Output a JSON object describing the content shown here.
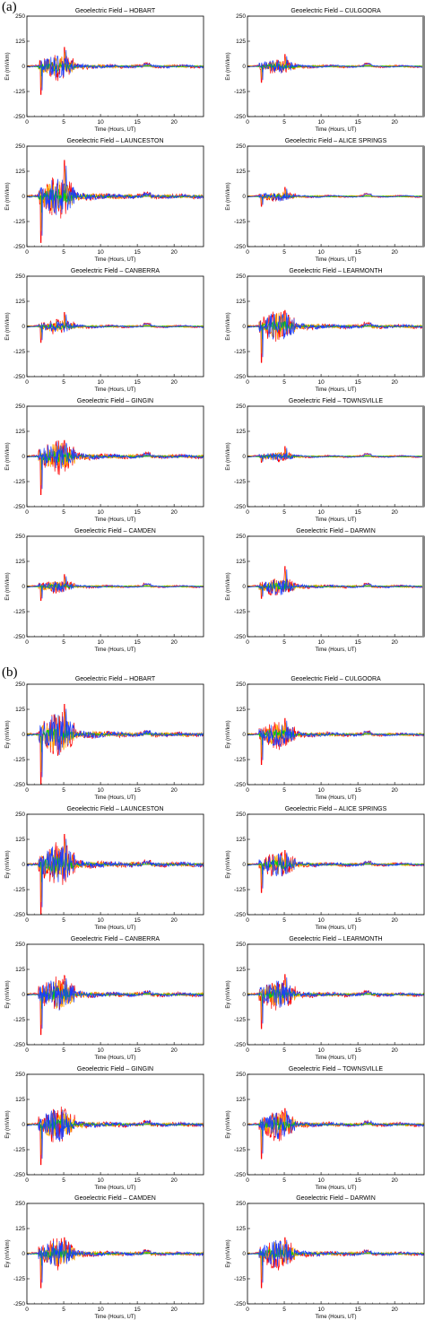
{
  "panel_labels": {
    "a": "(a)",
    "b": "(b)"
  },
  "colors": {
    "x_component": "#ff0000",
    "y_component": "#ffa500",
    "green": "#00cc00",
    "z_component": "#1a3cff",
    "edge_bar": "#888888"
  },
  "chart_data": [
    {
      "panel": "a",
      "type": "line",
      "title": "Geoelectric Field  –  HOBART",
      "xlabel": "Time (Hours, UT)",
      "ylabel": "Ex (mV/km)",
      "xlim": [
        0,
        24
      ],
      "ylim": [
        -250,
        250
      ],
      "xticks": [
        "0",
        "5",
        "10",
        "15",
        "20"
      ],
      "yticks": [
        "250",
        "125",
        "0",
        "-125",
        "-250"
      ],
      "peak_max": 95,
      "peak_min": -140,
      "series": [
        {
          "color": "#ff0000"
        },
        {
          "color": "#ffa500"
        },
        {
          "color": "#00cc00"
        },
        {
          "color": "#1a3cff"
        }
      ]
    },
    {
      "panel": "a",
      "type": "line",
      "title": "Geoelectric Field  –  CULGOORA",
      "xlabel": "Time (Hours, UT)",
      "ylabel": "Ex (mV/km)",
      "xlim": [
        0,
        24
      ],
      "ylim": [
        -250,
        250
      ],
      "xticks": [
        "0",
        "5",
        "10",
        "15",
        "20"
      ],
      "yticks": [
        "250",
        "125",
        "0",
        "-125",
        "-250"
      ],
      "peak_max": 60,
      "peak_min": -80,
      "series": [
        {
          "color": "#ff0000"
        },
        {
          "color": "#ffa500"
        },
        {
          "color": "#00cc00"
        },
        {
          "color": "#1a3cff"
        }
      ]
    },
    {
      "panel": "a",
      "type": "line",
      "title": "Geoelectric Field  –  LAUNCESTON",
      "xlabel": "Time (Hours, UT)",
      "ylabel": "Ex (mV/km)",
      "xlim": [
        0,
        24
      ],
      "ylim": [
        -250,
        250
      ],
      "xticks": [
        "0",
        "5",
        "10",
        "15",
        "20"
      ],
      "yticks": [
        "250",
        "125",
        "0",
        "-125",
        "-250"
      ],
      "peak_max": 180,
      "peak_min": -230,
      "series": [
        {
          "color": "#ff0000"
        },
        {
          "color": "#ffa500"
        },
        {
          "color": "#00cc00"
        },
        {
          "color": "#1a3cff"
        }
      ]
    },
    {
      "panel": "a",
      "type": "line",
      "title": "Geoelectric Field  –  ALICE SPRINGS",
      "xlabel": "Time (Hours, UT)",
      "ylabel": "Ex (mV/km)",
      "xlim": [
        0,
        24
      ],
      "ylim": [
        -250,
        250
      ],
      "xticks": [
        "0",
        "5",
        "10",
        "15",
        "20"
      ],
      "yticks": [
        "250",
        "125",
        "0",
        "-125",
        "-250"
      ],
      "peak_max": 45,
      "peak_min": -50,
      "series": [
        {
          "color": "#ff0000"
        },
        {
          "color": "#ffa500"
        },
        {
          "color": "#00cc00"
        },
        {
          "color": "#1a3cff"
        }
      ]
    },
    {
      "panel": "a",
      "type": "line",
      "title": "Geoelectric Field  –  CANBERRA",
      "xlabel": "Time (Hours, UT)",
      "ylabel": "Ex (mV/km)",
      "xlim": [
        0,
        24
      ],
      "ylim": [
        -250,
        250
      ],
      "xticks": [
        "0",
        "5",
        "10",
        "15",
        "20"
      ],
      "yticks": [
        "250",
        "125",
        "0",
        "-125",
        "-250"
      ],
      "peak_max": 70,
      "peak_min": -80,
      "series": [
        {
          "color": "#ff0000"
        },
        {
          "color": "#ffa500"
        },
        {
          "color": "#00cc00"
        },
        {
          "color": "#1a3cff"
        }
      ]
    },
    {
      "panel": "a",
      "type": "line",
      "title": "Geoelectric Field  –  LEARMONTH",
      "xlabel": "Time (Hours, UT)",
      "ylabel": "Ex (mV/km)",
      "xlim": [
        0,
        24
      ],
      "ylim": [
        -250,
        250
      ],
      "xticks": [
        "0",
        "5",
        "10",
        "15",
        "20"
      ],
      "yticks": [
        "250",
        "125",
        "0",
        "-125",
        "-250"
      ],
      "peak_max": 80,
      "peak_min": -180,
      "series": [
        {
          "color": "#ff0000"
        },
        {
          "color": "#ffa500"
        },
        {
          "color": "#00cc00"
        },
        {
          "color": "#1a3cff"
        }
      ]
    },
    {
      "panel": "a",
      "type": "line",
      "title": "Geoelectric Field  –  GINGIN",
      "xlabel": "Time (Hours, UT)",
      "ylabel": "Ex (mV/km)",
      "xlim": [
        0,
        24
      ],
      "ylim": [
        -250,
        250
      ],
      "xticks": [
        "0",
        "5",
        "10",
        "15",
        "20"
      ],
      "yticks": [
        "250",
        "125",
        "0",
        "-125",
        "-250"
      ],
      "peak_max": 80,
      "peak_min": -190,
      "series": [
        {
          "color": "#ff0000"
        },
        {
          "color": "#ffa500"
        },
        {
          "color": "#00cc00"
        },
        {
          "color": "#1a3cff"
        }
      ]
    },
    {
      "panel": "a",
      "type": "line",
      "title": "Geoelectric Field  –  TOWNSVILLE",
      "xlabel": "Time (Hours, UT)",
      "ylabel": "Ex (mV/km)",
      "xlim": [
        0,
        24
      ],
      "ylim": [
        -250,
        250
      ],
      "xticks": [
        "0",
        "5",
        "10",
        "15",
        "20"
      ],
      "yticks": [
        "250",
        "125",
        "0",
        "-125",
        "-250"
      ],
      "peak_max": 50,
      "peak_min": -30,
      "series": [
        {
          "color": "#ff0000"
        },
        {
          "color": "#ffa500"
        },
        {
          "color": "#00cc00"
        },
        {
          "color": "#1a3cff"
        }
      ]
    },
    {
      "panel": "a",
      "type": "line",
      "title": "Geoelectric Field  –  CAMDEN",
      "xlabel": "Time (Hours, UT)",
      "ylabel": "Ex (mV/km)",
      "xlim": [
        0,
        24
      ],
      "ylim": [
        -250,
        250
      ],
      "xticks": [
        "0",
        "5",
        "10",
        "15",
        "20"
      ],
      "yticks": [
        "250",
        "125",
        "0",
        "-125",
        "-250"
      ],
      "peak_max": 60,
      "peak_min": -70,
      "series": [
        {
          "color": "#ff0000"
        },
        {
          "color": "#ffa500"
        },
        {
          "color": "#00cc00"
        },
        {
          "color": "#1a3cff"
        }
      ]
    },
    {
      "panel": "a",
      "type": "line",
      "title": "Geoelectric Field  –  DARWIN",
      "xlabel": "Time (Hours, UT)",
      "ylabel": "Ex (mV/km)",
      "xlim": [
        0,
        24
      ],
      "ylim": [
        -250,
        250
      ],
      "xticks": [
        "0",
        "5",
        "10",
        "15",
        "20"
      ],
      "yticks": [
        "250",
        "125",
        "0",
        "-125",
        "-250"
      ],
      "peak_max": 100,
      "peak_min": -60,
      "series": [
        {
          "color": "#ff0000"
        },
        {
          "color": "#ffa500"
        },
        {
          "color": "#00cc00"
        },
        {
          "color": "#1a3cff"
        }
      ]
    },
    {
      "panel": "b",
      "type": "line",
      "title": "Geoelectric Field  –  HOBART",
      "xlabel": "Time (Hours, UT)",
      "ylabel": "Ey (mV/km)",
      "xlim": [
        0,
        24
      ],
      "ylim": [
        -250,
        250
      ],
      "xticks": [
        "0",
        "5",
        "10",
        "15",
        "20"
      ],
      "yticks": [
        "250",
        "125",
        "0",
        "-125",
        "-250"
      ],
      "peak_max": 150,
      "peak_min": -250,
      "series": [
        {
          "color": "#ff0000"
        },
        {
          "color": "#ffa500"
        },
        {
          "color": "#00cc00"
        },
        {
          "color": "#1a3cff"
        }
      ]
    },
    {
      "panel": "b",
      "type": "line",
      "title": "Geoelectric Field  –  CULGOORA",
      "xlabel": "Time (Hours, UT)",
      "ylabel": "Ey (mV/km)",
      "xlim": [
        0,
        24
      ],
      "ylim": [
        -250,
        250
      ],
      "xticks": [
        "0",
        "5",
        "10",
        "15",
        "20"
      ],
      "yticks": [
        "250",
        "125",
        "0",
        "-125",
        "-250"
      ],
      "peak_max": 80,
      "peak_min": -150,
      "series": [
        {
          "color": "#ff0000"
        },
        {
          "color": "#ffa500"
        },
        {
          "color": "#00cc00"
        },
        {
          "color": "#1a3cff"
        }
      ]
    },
    {
      "panel": "b",
      "type": "line",
      "title": "Geoelectric Field  –  LAUNCESTON",
      "xlabel": "Time (Hours, UT)",
      "ylabel": "Ey (mV/km)",
      "xlim": [
        0,
        24
      ],
      "ylim": [
        -250,
        250
      ],
      "xticks": [
        "0",
        "5",
        "10",
        "15",
        "20"
      ],
      "yticks": [
        "250",
        "125",
        "0",
        "-125",
        "-250"
      ],
      "peak_max": 150,
      "peak_min": -250,
      "series": [
        {
          "color": "#ff0000"
        },
        {
          "color": "#ffa500"
        },
        {
          "color": "#00cc00"
        },
        {
          "color": "#1a3cff"
        }
      ]
    },
    {
      "panel": "b",
      "type": "line",
      "title": "Geoelectric Field  –  ALICE SPRINGS",
      "xlabel": "Time (Hours, UT)",
      "ylabel": "Ey (mV/km)",
      "xlim": [
        0,
        24
      ],
      "ylim": [
        -250,
        250
      ],
      "xticks": [
        "0",
        "5",
        "10",
        "15",
        "20"
      ],
      "yticks": [
        "250",
        "125",
        "0",
        "-125",
        "-250"
      ],
      "peak_max": 70,
      "peak_min": -140,
      "series": [
        {
          "color": "#ff0000"
        },
        {
          "color": "#ffa500"
        },
        {
          "color": "#00cc00"
        },
        {
          "color": "#1a3cff"
        }
      ]
    },
    {
      "panel": "b",
      "type": "line",
      "title": "Geoelectric Field  –  CANBERRA",
      "xlabel": "Time (Hours, UT)",
      "ylabel": "Ey (mV/km)",
      "xlim": [
        0,
        24
      ],
      "ylim": [
        -250,
        250
      ],
      "xticks": [
        "0",
        "5",
        "10",
        "15",
        "20"
      ],
      "yticks": [
        "250",
        "125",
        "0",
        "-125",
        "-250"
      ],
      "peak_max": 95,
      "peak_min": -200,
      "series": [
        {
          "color": "#ff0000"
        },
        {
          "color": "#ffa500"
        },
        {
          "color": "#00cc00"
        },
        {
          "color": "#1a3cff"
        }
      ]
    },
    {
      "panel": "b",
      "type": "line",
      "title": "Geoelectric Field  –  LEARMONTH",
      "xlabel": "Time (Hours, UT)",
      "ylabel": "Ey (mV/km)",
      "xlim": [
        0,
        24
      ],
      "ylim": [
        -250,
        250
      ],
      "xticks": [
        "0",
        "5",
        "10",
        "15",
        "20"
      ],
      "yticks": [
        "250",
        "125",
        "0",
        "-125",
        "-250"
      ],
      "peak_max": 100,
      "peak_min": -170,
      "series": [
        {
          "color": "#ff0000"
        },
        {
          "color": "#ffa500"
        },
        {
          "color": "#00cc00"
        },
        {
          "color": "#1a3cff"
        }
      ]
    },
    {
      "panel": "b",
      "type": "line",
      "title": "Geoelectric Field  –  GINGIN",
      "xlabel": "Time (Hours, UT)",
      "ylabel": "Ey (mV/km)",
      "xlim": [
        0,
        24
      ],
      "ylim": [
        -250,
        250
      ],
      "xticks": [
        "0",
        "5",
        "10",
        "15",
        "20"
      ],
      "yticks": [
        "250",
        "125",
        "0",
        "-125",
        "-250"
      ],
      "peak_max": 70,
      "peak_min": -200,
      "series": [
        {
          "color": "#ff0000"
        },
        {
          "color": "#ffa500"
        },
        {
          "color": "#00cc00"
        },
        {
          "color": "#1a3cff"
        }
      ]
    },
    {
      "panel": "b",
      "type": "line",
      "title": "Geoelectric Field  –  TOWNSVILLE",
      "xlabel": "Time (Hours, UT)",
      "ylabel": "Ey (mV/km)",
      "xlim": [
        0,
        24
      ],
      "ylim": [
        -250,
        250
      ],
      "xticks": [
        "0",
        "5",
        "10",
        "15",
        "20"
      ],
      "yticks": [
        "250",
        "125",
        "0",
        "-125",
        "-250"
      ],
      "peak_max": 80,
      "peak_min": -170,
      "series": [
        {
          "color": "#ff0000"
        },
        {
          "color": "#ffa500"
        },
        {
          "color": "#00cc00"
        },
        {
          "color": "#1a3cff"
        }
      ]
    },
    {
      "panel": "b",
      "type": "line",
      "title": "Geoelectric Field  –  CAMDEN",
      "xlabel": "Time (Hours, UT)",
      "ylabel": "Ey (mV/km)",
      "xlim": [
        0,
        24
      ],
      "ylim": [
        -250,
        250
      ],
      "xticks": [
        "0",
        "5",
        "10",
        "15",
        "20"
      ],
      "yticks": [
        "250",
        "125",
        "0",
        "-125",
        "-250"
      ],
      "peak_max": 80,
      "peak_min": -170,
      "series": [
        {
          "color": "#ff0000"
        },
        {
          "color": "#ffa500"
        },
        {
          "color": "#00cc00"
        },
        {
          "color": "#1a3cff"
        }
      ]
    },
    {
      "panel": "b",
      "type": "line",
      "title": "Geoelectric Field  –  DARWIN",
      "xlabel": "Time (Hours, UT)",
      "ylabel": "Ey (mV/km)",
      "xlim": [
        0,
        24
      ],
      "ylim": [
        -250,
        250
      ],
      "xticks": [
        "0",
        "5",
        "10",
        "15",
        "20"
      ],
      "yticks": [
        "250",
        "125",
        "0",
        "-125",
        "-250"
      ],
      "peak_max": 80,
      "peak_min": -170,
      "series": [
        {
          "color": "#ff0000"
        },
        {
          "color": "#ffa500"
        },
        {
          "color": "#00cc00"
        },
        {
          "color": "#1a3cff"
        }
      ]
    }
  ]
}
